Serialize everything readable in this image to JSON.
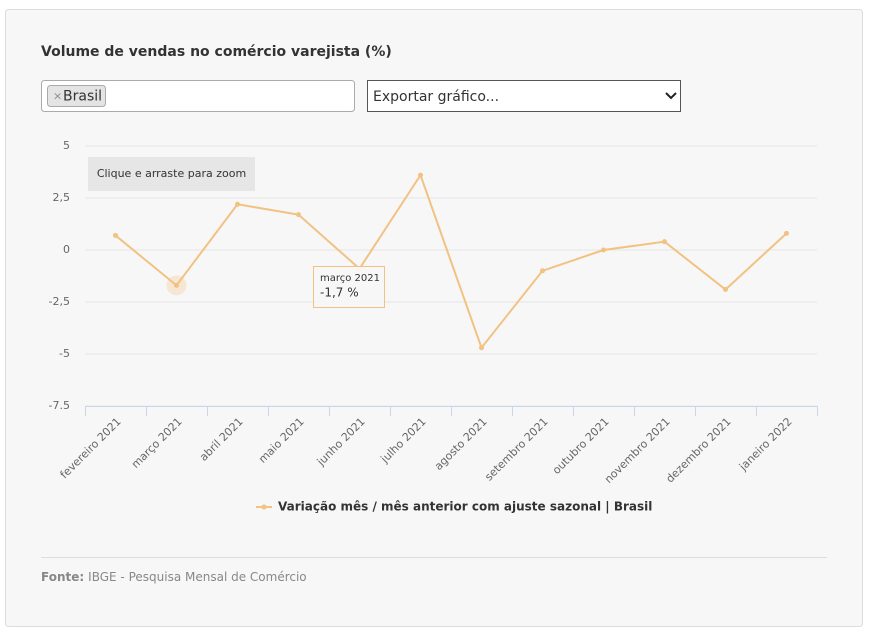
{
  "filter_tag": "Brasil",
  "export_select": "Exportar gráfico...",
  "zoom_hint": "Clique e arraste para zoom",
  "source": {
    "prefix": "Fonte:",
    "text": "IBGE - Pesquisa Mensal de Comércio"
  },
  "chart_data": {
    "type": "line",
    "title": "Volume de vendas no comércio varejista (%)",
    "categories": [
      "fevereiro 2021",
      "março 2021",
      "abril 2021",
      "maio 2021",
      "junho 2021",
      "julho 2021",
      "agosto 2021",
      "setembro 2021",
      "outubro 2021",
      "novembro 2021",
      "dezembro 2021",
      "janeiro 2022"
    ],
    "series": [
      {
        "name": "Variação mês / mês anterior com ajuste sazonal | Brasil",
        "color": "#f2c283",
        "values": [
          0.7,
          -1.7,
          2.2,
          1.7,
          -0.9,
          3.6,
          -4.7,
          -1.0,
          0.0,
          0.4,
          -1.9,
          0.8
        ]
      }
    ],
    "ylim": [
      -7.5,
      5
    ],
    "yticks": [
      -7.5,
      -5,
      {
        "value": -2.5,
        "label": "-2,5"
      },
      0,
      {
        "value": 2.5,
        "label": "2,5"
      },
      5
    ],
    "grid": true,
    "legend": "bottom",
    "tooltip": {
      "title": "março 2021",
      "value": -1.7,
      "label": "-1,7 %"
    }
  }
}
